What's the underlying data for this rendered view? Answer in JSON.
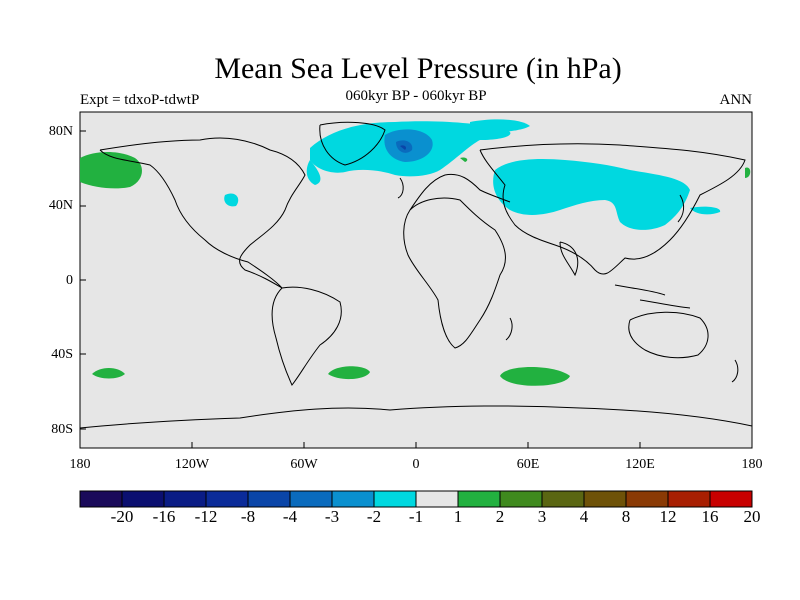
{
  "title": "Mean Sea Level Pressure (in hPa)",
  "left_string": "Expt = tdxoP-tdwtP",
  "center_string": "060kyr BP - 060kyr BP",
  "right_string": "ANN",
  "lat_labels": [
    "80N",
    "40N",
    "0",
    "40S",
    "80S"
  ],
  "lon_labels": [
    "180",
    "120W",
    "60W",
    "0",
    "60E",
    "120E",
    "180"
  ],
  "colorbar": {
    "labels": [
      "-20",
      "-16",
      "-12",
      "-8",
      "-4",
      "-3",
      "-2",
      "-1",
      "1",
      "2",
      "3",
      "4",
      "8",
      "12",
      "16",
      "20"
    ],
    "colors": [
      "#1a0a5a",
      "#0b0f70",
      "#0a1c85",
      "#0b2b99",
      "#0a45a8",
      "#0a6bbd",
      "#0a90cf",
      "#00d8e0",
      "#e6e6e6",
      "#22b140",
      "#3f8a1e",
      "#5a6612",
      "#6e5208",
      "#8a3a05",
      "#a81f02",
      "#c80000"
    ]
  },
  "land_color": "#e6e6e6"
}
